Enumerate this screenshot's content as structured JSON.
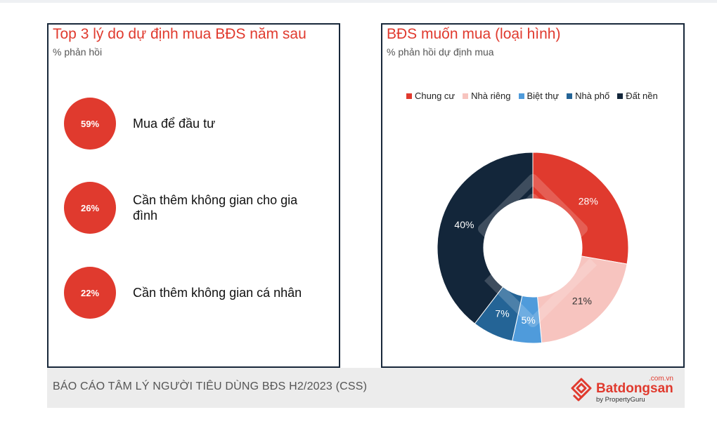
{
  "left_panel": {
    "title": "Top 3 lý do dự định mua BĐS năm sau",
    "subtitle": "% phản hồi",
    "reasons": [
      {
        "value": "59%",
        "label": "Mua để đầu tư"
      },
      {
        "value": "26%",
        "label": "Cần thêm không gian cho gia đình"
      },
      {
        "value": "22%",
        "label": "Cần thêm không gian cá nhân"
      }
    ]
  },
  "right_panel": {
    "title": "BĐS muốn mua (loại hình)",
    "subtitle": "% phản hồi dự định mua"
  },
  "chart_data": [
    {
      "type": "table",
      "title": "Top 3 lý do dự định mua BĐS năm sau",
      "subtitle": "% phản hồi",
      "categories": [
        "Mua để đầu tư",
        "Cần thêm không gian cho gia đình",
        "Cần thêm không gian cá nhân"
      ],
      "values": [
        59,
        26,
        22
      ]
    },
    {
      "type": "pie",
      "donut": true,
      "title": "BĐS muốn mua (loại hình)",
      "subtitle": "% phản hồi dự định mua",
      "legend_position": "top",
      "categories": [
        "Chung cư",
        "Nhà riêng",
        "Biệt thự",
        "Nhà phố",
        "Đất nền"
      ],
      "values": [
        28,
        21,
        5,
        7,
        40
      ],
      "labels": [
        "28%",
        "21%",
        "5%",
        "7%",
        "40%"
      ],
      "colors": [
        "#e03a2e",
        "#f7c4bf",
        "#4f9bdb",
        "#246496",
        "#13263a"
      ],
      "label_colors": [
        "#ffffff",
        "#333333",
        "#ffffff",
        "#ffffff",
        "#ffffff"
      ]
    }
  ],
  "footer": {
    "report_title": "BÁO CÁO TÂM LÝ NGƯỜI TIÊU DÙNG BĐS H2/2023 (CSS)",
    "logo_domain": ".com.vn",
    "logo_name": "Batdongsan",
    "logo_by": "by PropertyGuru",
    "logo_icon": "batdongsan-logo-icon",
    "brand_color": "#e03a2e"
  }
}
